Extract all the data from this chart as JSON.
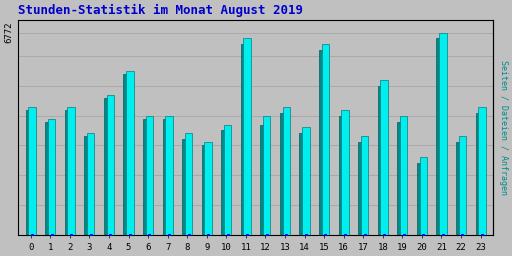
{
  "title": "Stunden-Statistik im Monat August 2019",
  "ylabel_right": "Seiten / Dateien / Anfragen",
  "ytick_label": "6772",
  "categories": [
    0,
    1,
    2,
    3,
    4,
    5,
    6,
    7,
    8,
    9,
    10,
    11,
    12,
    13,
    14,
    15,
    16,
    17,
    18,
    19,
    20,
    21,
    22,
    23
  ],
  "bar1_values": [
    4300,
    3900,
    4300,
    3400,
    4700,
    5500,
    4000,
    4000,
    3400,
    3100,
    3700,
    6600,
    4000,
    4300,
    3600,
    6400,
    4200,
    3300,
    5200,
    4000,
    2600,
    6772,
    3300,
    4300
  ],
  "bar2_values": [
    4200,
    3800,
    4200,
    3300,
    4600,
    5400,
    3900,
    3900,
    3200,
    3000,
    3500,
    6400,
    3700,
    4100,
    3400,
    6200,
    4000,
    3100,
    5000,
    3800,
    2400,
    6600,
    3100,
    4100
  ],
  "bar1_color": "#00EEEE",
  "bar2_color": "#008B8B",
  "bar1_edge": "#008080",
  "bar2_edge": "#006060",
  "background_color": "#C0C0C0",
  "plot_bg_color": "#C0C0C0",
  "title_color": "#0000CC",
  "title_fontsize": 9,
  "right_label_color": "#008B8B",
  "grid_color": "#AAAAAA",
  "ylim": [
    0,
    7200
  ],
  "bar_width": 0.38
}
